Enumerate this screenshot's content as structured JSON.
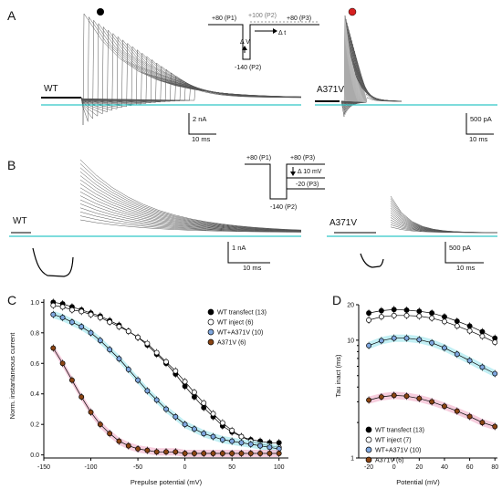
{
  "panels": {
    "A": {
      "letter": "A",
      "wt_label": "WT",
      "mut_label": "A371V",
      "protocol": {
        "p1": "+80 (P1)",
        "p2top": "+100 (P2)",
        "p3": "+80 (P3)",
        "p2bottom": "-140 (P2)",
        "dt": "Δ t",
        "dv": "Δ V"
      },
      "scale_wt": {
        "y": "2 nA",
        "x": "10 ms"
      },
      "scale_mut": {
        "y": "500 pA",
        "x": "10 ms"
      },
      "marker_colors": {
        "wt": "#000000",
        "mut": "#d62020"
      }
    },
    "B": {
      "letter": "B",
      "wt_label": "WT",
      "mut_label": "A371V",
      "protocol": {
        "p1": "+80 (P1)",
        "p3": "+80 (P3)",
        "dv": "Δ 10 mV",
        "p3b": "-20 (P3)",
        "p2": "-140 (P2)"
      },
      "scale_wt": {
        "y": "1 nA",
        "x": "10 ms"
      },
      "scale_mut": {
        "y": "500 pA",
        "x": "10 ms"
      }
    },
    "C": {
      "letter": "C",
      "ylabel": "Norm. instantaneous current",
      "xlabel": "Prepulse potential (mV)",
      "legend": [
        "WT transfect (13)",
        "WT inject (6)",
        "WT+A371V (10)",
        "A371V (6)"
      ]
    },
    "D": {
      "letter": "D",
      "ylabel": "Tau inact (ms)",
      "xlabel": "Potential (mV)",
      "legend": [
        "WT transfect (13)",
        "WT inject (7)",
        "WT+A371V (10)",
        "A371V (6)"
      ]
    }
  },
  "chart_data": [
    {
      "type": "scatter",
      "panel": "C",
      "xlabel": "Prepulse potential (mV)",
      "ylabel": "Norm. instantaneous current",
      "xlim": [
        -150,
        110
      ],
      "ylim": [
        -0.02,
        1.02
      ],
      "xticks": [
        -150,
        -100,
        -50,
        0,
        50,
        100
      ],
      "yticks": [
        0.0,
        0.2,
        0.4,
        0.6,
        0.8,
        1.0
      ],
      "legend_position": "top-right",
      "x": [
        -140,
        -130,
        -120,
        -110,
        -100,
        -90,
        -80,
        -70,
        -60,
        -50,
        -40,
        -30,
        -20,
        -10,
        0,
        10,
        20,
        30,
        40,
        50,
        60,
        70,
        80,
        90,
        100
      ],
      "series": [
        {
          "name": "WT transfect (13)",
          "color": "#000000",
          "marker": "filled",
          "values": [
            1.0,
            0.99,
            0.97,
            0.95,
            0.93,
            0.91,
            0.88,
            0.85,
            0.81,
            0.77,
            0.72,
            0.66,
            0.6,
            0.53,
            0.45,
            0.38,
            0.31,
            0.25,
            0.19,
            0.15,
            0.12,
            0.1,
            0.09,
            0.08,
            0.08
          ]
        },
        {
          "name": "WT inject (6)",
          "color": "#ffffff",
          "marker": "open",
          "values": [
            0.98,
            0.97,
            0.95,
            0.94,
            0.92,
            0.9,
            0.87,
            0.84,
            0.81,
            0.77,
            0.73,
            0.67,
            0.61,
            0.55,
            0.48,
            0.41,
            0.34,
            0.27,
            0.21,
            0.16,
            0.12,
            0.09,
            0.07,
            0.06,
            0.05
          ]
        },
        {
          "name": "WT+A371V (10)",
          "color": "#7fa8e0",
          "marker": "filled",
          "band": "#a8e8ef",
          "values": [
            0.92,
            0.9,
            0.87,
            0.84,
            0.8,
            0.75,
            0.69,
            0.63,
            0.56,
            0.49,
            0.42,
            0.36,
            0.3,
            0.25,
            0.2,
            0.17,
            0.14,
            0.12,
            0.1,
            0.09,
            0.08,
            0.07,
            0.06,
            0.05,
            0.04
          ]
        },
        {
          "name": "A371V (6)",
          "color": "#8b4513",
          "marker": "filled",
          "band": "#f2b8cf",
          "values": [
            0.7,
            0.6,
            0.49,
            0.38,
            0.28,
            0.2,
            0.14,
            0.09,
            0.06,
            0.04,
            0.03,
            0.02,
            0.02,
            0.02,
            0.01,
            0.01,
            0.01,
            0.01,
            0.01,
            0.01,
            0.01,
            0.01,
            0.01,
            0.01,
            0.01
          ]
        }
      ]
    },
    {
      "type": "scatter",
      "panel": "D",
      "xlabel": "Potential (mV)",
      "ylabel": "Tau inact (ms)",
      "scale_y": "log",
      "xlim": [
        -28,
        82
      ],
      "ylim": [
        1,
        20
      ],
      "xticks": [
        -20,
        0,
        20,
        40,
        60,
        80
      ],
      "yticks": [
        1,
        10,
        20
      ],
      "legend_position": "bottom-left",
      "x": [
        -20,
        -10,
        0,
        10,
        20,
        30,
        40,
        50,
        60,
        70,
        80
      ],
      "series": [
        {
          "name": "WT transfect (13)",
          "color": "#000000",
          "marker": "filled",
          "values": [
            17.0,
            17.8,
            18.2,
            18.0,
            17.6,
            17.0,
            15.8,
            14.5,
            13.2,
            11.8,
            10.4
          ]
        },
        {
          "name": "WT inject (7)",
          "color": "#ffffff",
          "marker": "open",
          "values": [
            14.8,
            15.8,
            16.2,
            16.2,
            16.0,
            15.4,
            14.4,
            13.2,
            12.0,
            10.8,
            9.6
          ]
        },
        {
          "name": "WT+A371V (10)",
          "color": "#7fa8e0",
          "marker": "filled",
          "band": "#a8e8ef",
          "values": [
            9.0,
            9.9,
            10.4,
            10.4,
            10.1,
            9.5,
            8.6,
            7.6,
            6.7,
            5.9,
            5.2
          ]
        },
        {
          "name": "A371V (6)",
          "color": "#8b4513",
          "marker": "filled",
          "band": "#f2b8cf",
          "values": [
            3.1,
            3.3,
            3.4,
            3.35,
            3.2,
            3.0,
            2.75,
            2.5,
            2.25,
            2.0,
            1.85
          ]
        }
      ]
    }
  ]
}
